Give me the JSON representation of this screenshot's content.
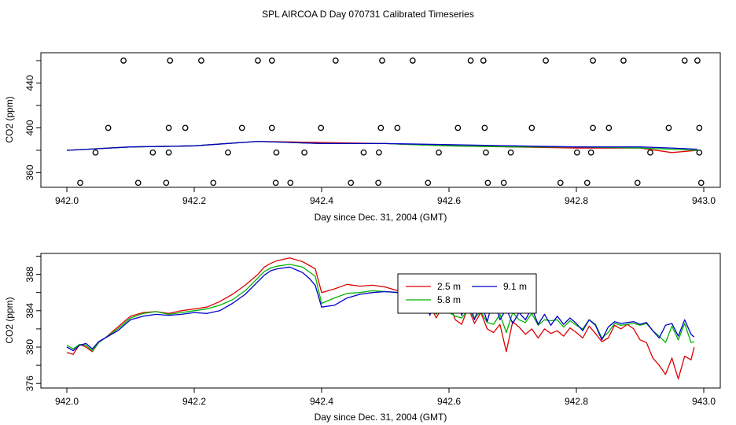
{
  "title": "SPL AIRCOA D  Day 070731  Calibrated Timeseries",
  "colors": {
    "red": "#dd0000",
    "green": "#00b400",
    "blue": "#0000cc",
    "axis": "#000000"
  },
  "chart_data": [
    {
      "type": "scatter",
      "title": "",
      "xlabel": "Day since Dec. 31, 2004 (GMT)",
      "ylabel": "CO2 (ppm)",
      "xlim": [
        942.0,
        943.0
      ],
      "ylim": [
        347,
        467
      ],
      "xticks": [
        942.0,
        942.2,
        942.4,
        942.6,
        942.8,
        943.0
      ],
      "xtick_labels": [
        "942.0",
        "942.2",
        "942.4",
        "942.6",
        "942.8",
        "943.0"
      ],
      "yticks": [
        360,
        400,
        440
      ],
      "ytick_labels": [
        "360",
        "400",
        "440"
      ],
      "yticks_minor": [
        380,
        420,
        460
      ],
      "grid": false,
      "calibration_points": [
        {
          "levels": [
            460,
            400,
            378,
            351
          ],
          "x": [
            942.089,
            942.162,
            942.211,
            942.3,
            942.322,
            942.422,
            942.495,
            942.543,
            942.634,
            942.654,
            942.752,
            942.826,
            942.874,
            942.97,
            942.99
          ]
        },
        {
          "level": 460,
          "x": [
            942.089,
            942.162,
            942.211,
            942.3,
            942.322,
            942.422,
            942.495,
            942.543,
            942.634,
            942.654,
            942.752,
            942.826,
            942.874,
            942.97,
            942.99
          ]
        },
        {
          "level": 400,
          "x": [
            942.065,
            942.16,
            942.186,
            942.275,
            942.322,
            942.399,
            942.493,
            942.519,
            942.614,
            942.656,
            942.73,
            942.826,
            942.851,
            942.945,
            942.993
          ]
        },
        {
          "level": 378,
          "x": [
            942.045,
            942.135,
            942.16,
            942.253,
            942.329,
            942.373,
            942.466,
            942.49,
            942.584,
            942.658,
            942.697,
            942.801,
            942.823,
            942.916,
            942.993
          ]
        },
        {
          "level": 351,
          "x": [
            942.021,
            942.112,
            942.156,
            942.23,
            942.328,
            942.351,
            942.446,
            942.489,
            942.567,
            942.661,
            942.686,
            942.775,
            942.817,
            942.896,
            942.996
          ]
        }
      ],
      "series": [
        {
          "name": "2.5 m",
          "color": "#dd0000",
          "x": [
            942.0,
            942.1,
            942.2,
            942.3,
            942.4,
            942.5,
            942.6,
            942.7,
            942.8,
            942.9,
            942.95,
            942.99
          ],
          "values": [
            380,
            383,
            384,
            388,
            387,
            386,
            384,
            383,
            382,
            382,
            378,
            380
          ]
        },
        {
          "name": "5.8 m",
          "color": "#00b400",
          "x": [
            942.0,
            942.1,
            942.2,
            942.3,
            942.4,
            942.5,
            942.6,
            942.7,
            942.8,
            942.9,
            942.95,
            942.99
          ],
          "values": [
            380,
            383,
            384,
            388,
            386,
            386,
            384,
            383,
            383,
            382,
            381,
            380
          ]
        },
        {
          "name": "9.1 m",
          "color": "#0000cc",
          "x": [
            942.0,
            942.1,
            942.2,
            942.3,
            942.4,
            942.5,
            942.6,
            942.7,
            942.8,
            942.9,
            942.95,
            942.99
          ],
          "values": [
            380,
            383,
            384,
            388,
            386,
            386,
            385,
            384,
            383,
            383,
            382,
            381
          ]
        }
      ]
    },
    {
      "type": "line",
      "title": "",
      "xlabel": "Day since Dec. 31, 2004 (GMT)",
      "ylabel": "CO2 (ppm)",
      "xlim": [
        942.0,
        943.0
      ],
      "ylim": [
        375.5,
        390.3
      ],
      "xticks": [
        942.0,
        942.2,
        942.4,
        942.6,
        942.8,
        943.0
      ],
      "xtick_labels": [
        "942.0",
        "942.2",
        "942.4",
        "942.6",
        "942.8",
        "943.0"
      ],
      "yticks": [
        376,
        380,
        384,
        388
      ],
      "ytick_labels": [
        "376",
        "380",
        "384",
        "388"
      ],
      "yticks_minor": [
        378,
        382,
        386,
        390
      ],
      "grid": false,
      "legend": {
        "position": "center-right",
        "entries": [
          "2.5 m",
          "9.1 m",
          "5.8 m"
        ]
      },
      "series": [
        {
          "name": "2.5 m",
          "color": "#dd0000",
          "x": [
            942.0,
            942.01,
            942.02,
            942.03,
            942.04,
            942.05,
            942.06,
            942.08,
            942.1,
            942.12,
            942.14,
            942.16,
            942.18,
            942.2,
            942.22,
            942.24,
            942.26,
            942.28,
            942.3,
            942.31,
            942.32,
            942.33,
            942.35,
            942.37,
            942.38,
            942.39,
            942.4,
            942.42,
            942.44,
            942.46,
            942.48,
            942.5,
            942.52,
            942.54,
            942.55,
            942.56,
            942.57,
            942.58,
            942.59,
            942.6,
            942.61,
            942.62,
            942.63,
            942.64,
            942.65,
            942.66,
            942.67,
            942.68,
            942.69,
            942.7,
            942.71,
            942.72,
            942.73,
            942.74,
            942.75,
            942.76,
            942.77,
            942.78,
            942.79,
            942.8,
            942.81,
            942.82,
            942.83,
            942.84,
            942.85,
            942.86,
            942.87,
            942.88,
            942.89,
            942.9,
            942.91,
            942.92,
            942.93,
            942.94,
            942.95,
            942.96,
            942.97,
            942.98,
            942.985
          ],
          "values": [
            379.4,
            379.2,
            380.3,
            380.0,
            379.5,
            380.5,
            381.0,
            382.2,
            383.4,
            383.8,
            383.9,
            383.7,
            384.0,
            384.2,
            384.4,
            385.0,
            385.8,
            386.8,
            388.0,
            388.8,
            389.2,
            389.5,
            389.8,
            389.4,
            389.0,
            388.6,
            386.0,
            386.4,
            386.9,
            386.7,
            386.8,
            386.6,
            386.2,
            385.8,
            384.8,
            384.0,
            384.6,
            383.2,
            384.5,
            384.8,
            383.0,
            382.5,
            384.4,
            382.6,
            383.8,
            382.0,
            381.6,
            382.5,
            379.5,
            382.8,
            382.2,
            381.4,
            382.0,
            381.0,
            382.0,
            381.5,
            381.8,
            381.2,
            382.1,
            381.6,
            381.0,
            382.3,
            381.5,
            380.6,
            381.0,
            382.4,
            382.0,
            382.5,
            382.0,
            380.8,
            380.5,
            378.8,
            378.0,
            377.0,
            378.8,
            376.5,
            379.0,
            378.6,
            380.0
          ]
        },
        {
          "name": "5.8 m",
          "color": "#00b400",
          "x": [
            942.0,
            942.01,
            942.02,
            942.03,
            942.04,
            942.05,
            942.06,
            942.08,
            942.1,
            942.12,
            942.14,
            942.16,
            942.18,
            942.2,
            942.22,
            942.24,
            942.26,
            942.28,
            942.3,
            942.31,
            942.32,
            942.33,
            942.35,
            942.37,
            942.38,
            942.39,
            942.4,
            942.42,
            942.44,
            942.46,
            942.48,
            942.5,
            942.52,
            942.54,
            942.55,
            942.56,
            942.57,
            942.58,
            942.59,
            942.6,
            942.61,
            942.62,
            942.63,
            942.64,
            942.65,
            942.66,
            942.67,
            942.68,
            942.69,
            942.7,
            942.71,
            942.72,
            942.73,
            942.74,
            942.75,
            942.76,
            942.77,
            942.78,
            942.79,
            942.8,
            942.81,
            942.82,
            942.83,
            942.84,
            942.85,
            942.86,
            942.87,
            942.88,
            942.89,
            942.9,
            942.91,
            942.92,
            942.93,
            942.94,
            942.95,
            942.96,
            942.97,
            942.98,
            942.985
          ],
          "values": [
            380.2,
            379.8,
            380.3,
            380.2,
            379.6,
            380.5,
            381.0,
            382.0,
            383.2,
            383.7,
            383.9,
            383.6,
            383.8,
            384.0,
            384.2,
            384.6,
            385.2,
            386.2,
            387.6,
            388.3,
            388.7,
            388.9,
            389.1,
            388.8,
            388.3,
            387.8,
            384.8,
            385.4,
            385.9,
            386.0,
            386.2,
            386.1,
            386.0,
            385.6,
            385.0,
            384.4,
            384.9,
            383.6,
            384.8,
            383.8,
            383.4,
            383.2,
            384.1,
            383.2,
            383.9,
            382.7,
            382.5,
            383.6,
            381.6,
            383.8,
            383.0,
            382.7,
            383.7,
            382.4,
            383.0,
            382.9,
            383.0,
            382.2,
            382.9,
            382.4,
            382.0,
            383.0,
            382.5,
            381.0,
            381.6,
            382.6,
            382.4,
            382.5,
            382.6,
            382.4,
            382.6,
            381.8,
            381.2,
            380.5,
            382.3,
            380.8,
            382.6,
            380.5,
            380.6
          ]
        },
        {
          "name": "9.1 m",
          "color": "#0000cc",
          "x": [
            942.0,
            942.01,
            942.02,
            942.03,
            942.04,
            942.05,
            942.06,
            942.08,
            942.1,
            942.12,
            942.14,
            942.16,
            942.18,
            942.2,
            942.22,
            942.24,
            942.26,
            942.28,
            942.3,
            942.31,
            942.32,
            942.33,
            942.35,
            942.37,
            942.38,
            942.39,
            942.4,
            942.42,
            942.44,
            942.46,
            942.48,
            942.5,
            942.52,
            942.54,
            942.55,
            942.56,
            942.57,
            942.58,
            942.59,
            942.6,
            942.61,
            942.62,
            942.63,
            942.64,
            942.65,
            942.66,
            942.67,
            942.68,
            942.69,
            942.7,
            942.71,
            942.72,
            942.73,
            942.74,
            942.75,
            942.76,
            942.77,
            942.78,
            942.79,
            942.8,
            942.81,
            942.82,
            942.83,
            942.84,
            942.85,
            942.86,
            942.87,
            942.88,
            942.89,
            942.9,
            942.91,
            942.92,
            942.93,
            942.94,
            942.95,
            942.96,
            942.97,
            942.98,
            942.985
          ],
          "values": [
            380.0,
            379.6,
            380.2,
            380.4,
            379.8,
            380.6,
            381.0,
            381.8,
            383.0,
            383.4,
            383.6,
            383.5,
            383.6,
            383.8,
            383.7,
            384.0,
            384.8,
            385.8,
            387.2,
            387.9,
            388.4,
            388.6,
            388.8,
            388.2,
            387.6,
            386.8,
            384.4,
            384.6,
            385.4,
            385.8,
            386.0,
            386.1,
            386.0,
            385.7,
            385.0,
            385.6,
            383.5,
            385.8,
            384.0,
            384.6,
            385.8,
            383.5,
            385.5,
            383.0,
            385.0,
            382.8,
            385.4,
            383.0,
            384.2,
            382.6,
            383.8,
            383.0,
            384.3,
            382.5,
            383.6,
            382.4,
            383.4,
            382.5,
            383.2,
            382.6,
            381.8,
            383.0,
            382.4,
            380.8,
            382.2,
            382.8,
            382.6,
            382.7,
            382.8,
            382.5,
            382.7,
            381.8,
            381.0,
            382.4,
            382.6,
            381.2,
            383.0,
            381.4,
            381.1
          ]
        }
      ]
    }
  ]
}
